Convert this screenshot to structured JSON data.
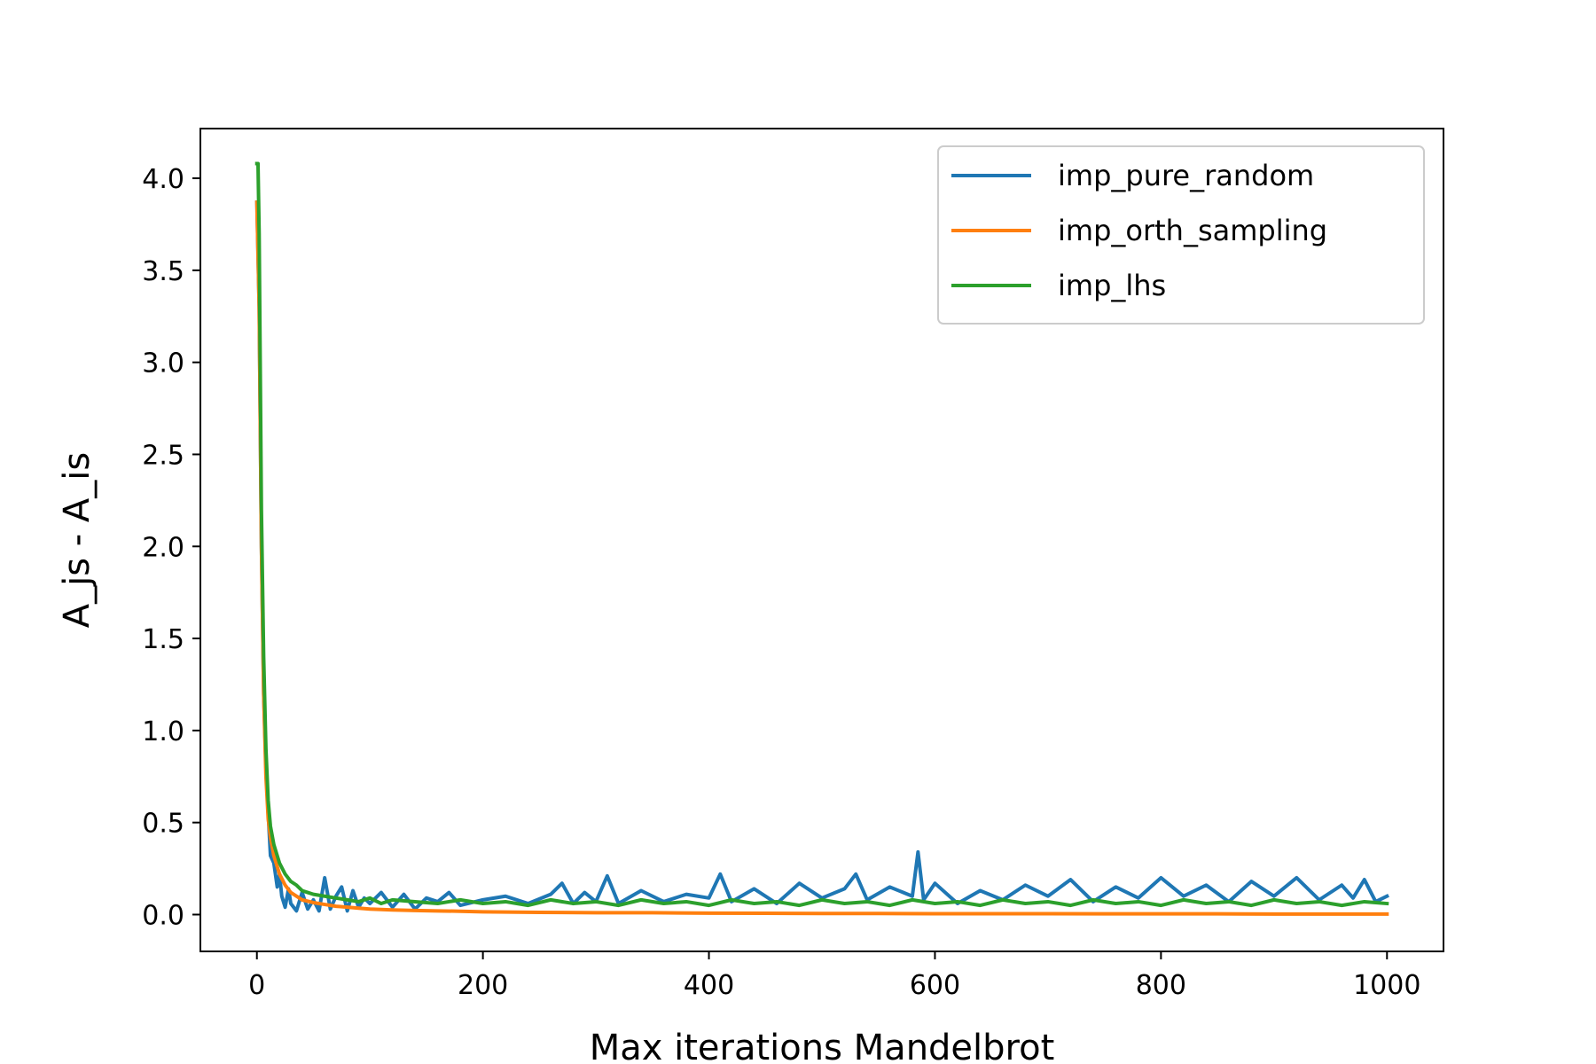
{
  "chart_data": {
    "type": "line",
    "title": "",
    "xlabel": "Max iterations Mandelbrot",
    "ylabel": "A_js - A_is",
    "xlim": [
      -50,
      1050
    ],
    "ylim": [
      -0.2,
      4.27
    ],
    "x_ticks": [
      0,
      200,
      400,
      600,
      800,
      1000
    ],
    "x_tick_labels": [
      "0",
      "200",
      "400",
      "600",
      "800",
      "1000"
    ],
    "y_ticks": [
      0.0,
      0.5,
      1.0,
      1.5,
      2.0,
      2.5,
      3.0,
      3.5,
      4.0
    ],
    "y_tick_labels": [
      "0.0",
      "0.5",
      "1.0",
      "1.5",
      "2.0",
      "2.5",
      "3.0",
      "3.5",
      "4.0"
    ],
    "grid": false,
    "legend_position": "top-right",
    "series": [
      {
        "name": "imp_pure_random",
        "color": "#1f77b4",
        "x": [
          0,
          2,
          4,
          6,
          8,
          10,
          12,
          15,
          18,
          20,
          22,
          25,
          28,
          30,
          35,
          40,
          45,
          50,
          55,
          60,
          65,
          70,
          75,
          80,
          85,
          90,
          95,
          100,
          110,
          120,
          130,
          140,
          150,
          160,
          170,
          180,
          200,
          220,
          240,
          260,
          270,
          280,
          290,
          300,
          310,
          320,
          340,
          360,
          380,
          400,
          410,
          420,
          440,
          460,
          480,
          500,
          520,
          530,
          540,
          560,
          580,
          585,
          590,
          600,
          620,
          640,
          660,
          680,
          700,
          720,
          740,
          760,
          780,
          800,
          820,
          840,
          860,
          880,
          900,
          920,
          940,
          960,
          970,
          980,
          990,
          1000
        ],
        "y": [
          3.87,
          3.3,
          2.0,
          1.2,
          0.8,
          0.55,
          0.32,
          0.28,
          0.15,
          0.22,
          0.1,
          0.04,
          0.14,
          0.06,
          0.02,
          0.12,
          0.03,
          0.08,
          0.02,
          0.2,
          0.03,
          0.1,
          0.15,
          0.02,
          0.13,
          0.04,
          0.09,
          0.06,
          0.12,
          0.04,
          0.11,
          0.03,
          0.09,
          0.07,
          0.12,
          0.05,
          0.08,
          0.1,
          0.06,
          0.11,
          0.17,
          0.06,
          0.12,
          0.07,
          0.21,
          0.06,
          0.13,
          0.07,
          0.11,
          0.09,
          0.22,
          0.07,
          0.14,
          0.06,
          0.17,
          0.09,
          0.14,
          0.22,
          0.08,
          0.15,
          0.1,
          0.34,
          0.08,
          0.17,
          0.06,
          0.13,
          0.08,
          0.16,
          0.1,
          0.19,
          0.07,
          0.15,
          0.09,
          0.2,
          0.1,
          0.16,
          0.07,
          0.18,
          0.1,
          0.2,
          0.08,
          0.16,
          0.09,
          0.19,
          0.07,
          0.1
        ]
      },
      {
        "name": "imp_orth_sampling",
        "color": "#ff7f0e",
        "x": [
          0,
          2,
          4,
          6,
          8,
          10,
          12,
          15,
          18,
          20,
          25,
          30,
          35,
          40,
          50,
          60,
          70,
          80,
          90,
          100,
          120,
          140,
          160,
          180,
          200,
          250,
          300,
          350,
          400,
          450,
          500,
          550,
          600,
          650,
          700,
          750,
          800,
          850,
          900,
          950,
          1000
        ],
        "y": [
          3.87,
          3.3,
          2.0,
          1.2,
          0.75,
          0.52,
          0.42,
          0.32,
          0.26,
          0.22,
          0.16,
          0.12,
          0.1,
          0.08,
          0.065,
          0.055,
          0.045,
          0.04,
          0.035,
          0.03,
          0.025,
          0.022,
          0.02,
          0.018,
          0.015,
          0.012,
          0.01,
          0.01,
          0.008,
          0.007,
          0.006,
          0.006,
          0.005,
          0.005,
          0.005,
          0.004,
          0.004,
          0.004,
          0.003,
          0.003,
          0.003
        ]
      },
      {
        "name": "imp_lhs",
        "color": "#2ca02c",
        "x": [
          0,
          1,
          2,
          4,
          6,
          8,
          10,
          12,
          15,
          18,
          20,
          25,
          30,
          35,
          40,
          45,
          50,
          60,
          70,
          80,
          90,
          100,
          110,
          120,
          140,
          160,
          180,
          200,
          220,
          240,
          260,
          280,
          300,
          320,
          340,
          360,
          380,
          400,
          420,
          440,
          460,
          480,
          500,
          520,
          540,
          560,
          580,
          600,
          620,
          640,
          660,
          680,
          700,
          720,
          740,
          760,
          780,
          800,
          820,
          840,
          860,
          880,
          900,
          920,
          940,
          960,
          980,
          1000
        ],
        "y": [
          4.08,
          4.08,
          3.7,
          2.2,
          1.4,
          0.9,
          0.62,
          0.48,
          0.38,
          0.32,
          0.28,
          0.22,
          0.18,
          0.16,
          0.13,
          0.12,
          0.11,
          0.1,
          0.09,
          0.08,
          0.07,
          0.09,
          0.06,
          0.08,
          0.07,
          0.06,
          0.08,
          0.06,
          0.07,
          0.05,
          0.08,
          0.06,
          0.07,
          0.05,
          0.08,
          0.06,
          0.07,
          0.05,
          0.08,
          0.06,
          0.07,
          0.05,
          0.08,
          0.06,
          0.07,
          0.05,
          0.08,
          0.06,
          0.07,
          0.05,
          0.08,
          0.06,
          0.07,
          0.05,
          0.08,
          0.06,
          0.07,
          0.05,
          0.08,
          0.06,
          0.07,
          0.05,
          0.08,
          0.06,
          0.07,
          0.05,
          0.07,
          0.06
        ]
      }
    ]
  }
}
